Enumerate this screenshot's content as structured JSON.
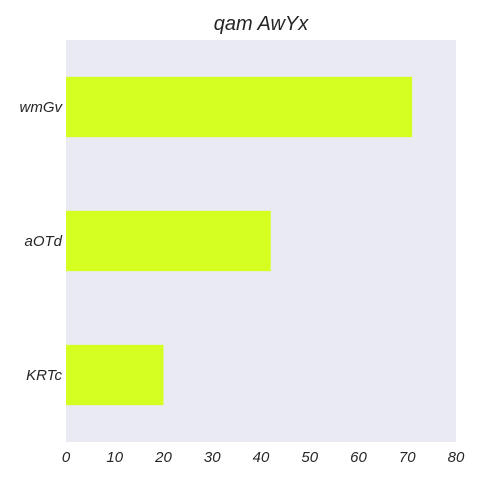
{
  "chart_data": {
    "type": "bar",
    "orientation": "horizontal",
    "title": "qam AwYx",
    "categories": [
      "wmGv",
      "aOTd",
      "KRTc"
    ],
    "values": [
      71,
      42,
      20
    ],
    "xlim": [
      0,
      80
    ],
    "xticks": [
      0,
      10,
      20,
      30,
      40,
      50,
      60,
      70,
      80
    ],
    "xlabel": "",
    "ylabel": "",
    "grid": false,
    "colors": {
      "bar": "#d4ff20",
      "plot_bg": "#eaeaf2",
      "text": "#262626"
    }
  }
}
